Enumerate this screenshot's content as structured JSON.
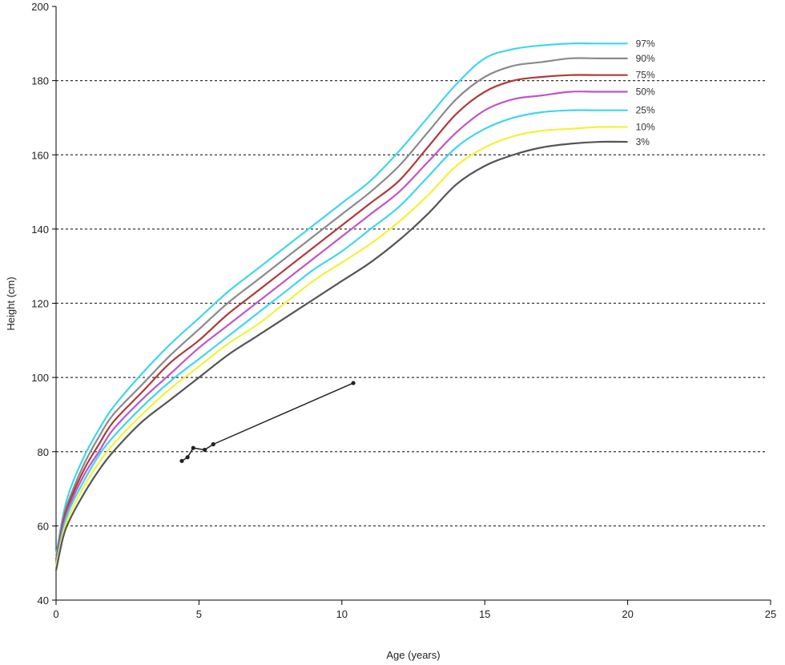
{
  "chart_data": {
    "type": "line",
    "title": "",
    "xlabel": "Age (years)",
    "ylabel": "Height (cm)",
    "xlim": [
      0,
      25
    ],
    "ylim": [
      40,
      200
    ],
    "x_ticks": [
      "0",
      "5",
      "10",
      "15",
      "20",
      "25"
    ],
    "y_ticks": [
      "40",
      "60",
      "80",
      "100",
      "120",
      "140",
      "160",
      "180",
      "200"
    ],
    "grid": "horizontal dotted",
    "series": [
      {
        "name": "97%",
        "color": "#3fd6ec",
        "x": [
          0,
          0.25,
          0.5,
          1,
          1.5,
          2,
          3,
          4,
          5,
          6,
          7,
          8,
          9,
          10,
          11,
          12,
          13,
          14,
          15,
          16,
          17,
          18,
          19,
          20
        ],
        "y": [
          52,
          63,
          70,
          79,
          86,
          92,
          101,
          109,
          116,
          123,
          129,
          135,
          141,
          147,
          153,
          161,
          170,
          179,
          186,
          188.5,
          189.5,
          190,
          190,
          190
        ]
      },
      {
        "name": "90%",
        "color": "#8a8a8a",
        "x": [
          0,
          0.25,
          0.5,
          1,
          1.5,
          2,
          3,
          4,
          5,
          6,
          7,
          8,
          9,
          10,
          11,
          12,
          13,
          14,
          15,
          16,
          17,
          18,
          19,
          20
        ],
        "y": [
          51,
          62,
          68,
          77,
          84,
          90,
          98,
          106,
          113,
          120,
          126,
          132,
          138,
          144,
          150,
          157,
          166,
          175,
          181,
          184,
          185,
          186,
          186,
          186
        ]
      },
      {
        "name": "75%",
        "color": "#b03a3a",
        "x": [
          0,
          0.25,
          0.5,
          1,
          1.5,
          2,
          3,
          4,
          5,
          6,
          7,
          8,
          9,
          10,
          11,
          12,
          13,
          14,
          15,
          16,
          17,
          18,
          19,
          20
        ],
        "y": [
          50.5,
          61,
          67,
          75.5,
          82,
          88,
          96,
          104,
          110,
          117,
          123,
          129,
          135,
          141,
          147,
          153,
          162,
          171,
          177,
          180,
          181,
          181.5,
          181.5,
          181.5
        ]
      },
      {
        "name": "50%",
        "color": "#c056c4",
        "x": [
          0,
          0.25,
          0.5,
          1,
          1.5,
          2,
          3,
          4,
          5,
          6,
          7,
          8,
          9,
          10,
          11,
          12,
          13,
          14,
          15,
          16,
          17,
          18,
          19,
          20
        ],
        "y": [
          50,
          60,
          66,
          74,
          80,
          86,
          94,
          101,
          108,
          114,
          120,
          126,
          132,
          138,
          144,
          150,
          158,
          166,
          172,
          175,
          176,
          177,
          177,
          177
        ]
      },
      {
        "name": "25%",
        "color": "#3fd6ec",
        "x": [
          0,
          0.25,
          0.5,
          1,
          1.5,
          2,
          3,
          4,
          5,
          6,
          7,
          8,
          9,
          10,
          11,
          12,
          13,
          14,
          15,
          16,
          17,
          18,
          19,
          20
        ],
        "y": [
          49.5,
          59,
          65,
          72.5,
          79,
          84,
          92,
          99,
          105,
          111,
          117,
          123,
          129,
          134,
          140,
          146,
          154,
          162,
          167,
          170,
          171.5,
          172,
          172,
          172
        ]
      },
      {
        "name": "10%",
        "color": "#f2f23a",
        "x": [
          0,
          0.25,
          0.5,
          1,
          1.5,
          2,
          3,
          4,
          5,
          6,
          7,
          8,
          9,
          10,
          11,
          12,
          13,
          14,
          15,
          16,
          17,
          18,
          19,
          20
        ],
        "y": [
          49,
          58,
          63.5,
          71,
          77,
          82,
          90,
          97,
          103,
          109,
          114,
          120,
          126,
          131,
          136,
          142,
          149,
          157,
          162,
          165,
          166.5,
          167,
          167.5,
          167.5
        ]
      },
      {
        "name": "3%",
        "color": "#555555",
        "x": [
          0,
          0.25,
          0.5,
          1,
          1.5,
          2,
          3,
          4,
          5,
          6,
          7,
          8,
          9,
          10,
          11,
          12,
          13,
          14,
          15,
          16,
          17,
          18,
          19,
          20
        ],
        "y": [
          48,
          57,
          62,
          69,
          75,
          80,
          88,
          94,
          100,
          106,
          111,
          116,
          121,
          126,
          131,
          137,
          144,
          152,
          157,
          160,
          162,
          163,
          163.5,
          163.5
        ]
      },
      {
        "name": "",
        "color": "#222222",
        "markers": true,
        "x": [
          4.4,
          4.6,
          4.8,
          5.2,
          5.5,
          10.4
        ],
        "y": [
          77.5,
          78.5,
          81,
          80.5,
          82,
          98.5
        ]
      }
    ]
  }
}
